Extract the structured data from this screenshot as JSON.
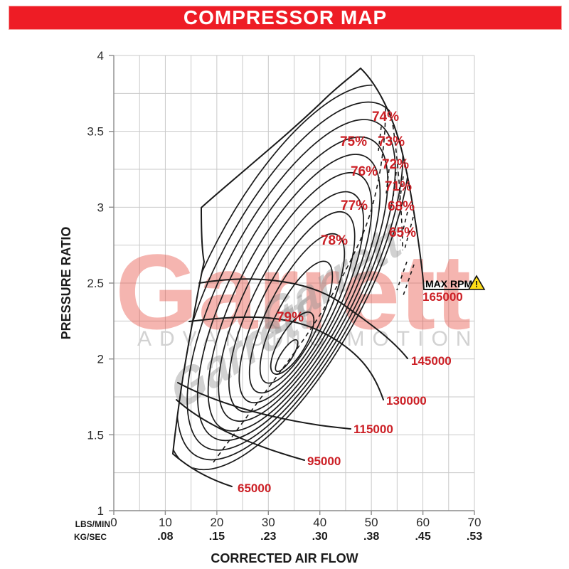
{
  "banner": {
    "title": "COMPRESSOR MAP",
    "bg_color": "#ee1c25",
    "text_color": "#ffffff"
  },
  "axes": {
    "y_title": "PRESSURE RATIO",
    "x_title": "CORRECTED AIR FLOW",
    "x_unit_row1": "LBS/MIN",
    "x_unit_row2": "KG/SEC",
    "y_ticks": [
      "4",
      "3.5",
      "3",
      "2.5",
      "2",
      "1.5",
      "1"
    ],
    "x_ticks_lbs": [
      "0",
      "10",
      "20",
      "30",
      "40",
      "50",
      "60",
      "70"
    ],
    "x_ticks_kg": [
      ".08",
      ".15",
      ".23",
      ".30",
      ".38",
      ".45",
      ".53"
    ]
  },
  "map": {
    "efficiency_labels": [
      "74%",
      "75%",
      "73%",
      "76%",
      "72%",
      "71%",
      "77%",
      "68%",
      "65%",
      "78%",
      "79%"
    ],
    "rpm_labels": [
      "165000",
      "145000",
      "130000",
      "115000",
      "95000",
      "65000"
    ],
    "max_rpm_label": "MAX RPM",
    "warning_icon_glyph": "!"
  },
  "watermark": {
    "brand": "Garrett",
    "tagline": "ADVANCING MOTION",
    "script": "Garrett"
  },
  "colors": {
    "banner_red": "#ee1c25",
    "label_red": "#cc2026",
    "curve_black": "#1a1a1a",
    "grid_gray": "#c9c9c9",
    "warning_yellow": "#ffde17",
    "watermark_pink": "#f0b0a9",
    "watermark_gray": "#d2d2d2"
  },
  "chart_data": {
    "type": "line",
    "title": "COMPRESSOR MAP",
    "xlabel": "CORRECTED AIR FLOW",
    "ylabel": "PRESSURE RATIO",
    "x_units": [
      "LBS/MIN",
      "KG/SEC"
    ],
    "xlim_lbs_min": [
      0,
      70
    ],
    "ylim_pressure_ratio": [
      1,
      4
    ],
    "x_ticks_lbs_min": [
      0,
      10,
      20,
      30,
      40,
      50,
      60,
      70
    ],
    "x_ticks_kg_sec": [
      0.08,
      0.15,
      0.23,
      0.3,
      0.38,
      0.45,
      0.53
    ],
    "grid": "on",
    "speed_lines_rpm": [
      65000,
      95000,
      115000,
      130000,
      145000,
      165000
    ],
    "max_rpm": 165000,
    "efficiency_contours_pct": [
      65,
      68,
      71,
      72,
      73,
      74,
      75,
      76,
      77,
      78,
      79
    ],
    "peak_efficiency_pct": 79,
    "surge_line_approx": [
      {
        "flow_lbs_min": 11.5,
        "pressure_ratio": 1.37
      },
      {
        "flow_lbs_min": 13.1,
        "pressure_ratio": 1.83
      },
      {
        "flow_lbs_min": 15.5,
        "pressure_ratio": 2.3
      },
      {
        "flow_lbs_min": 17.5,
        "pressure_ratio": 2.64
      },
      {
        "flow_lbs_min": 17.0,
        "pressure_ratio": 3.0
      },
      {
        "flow_lbs_min": 33.1,
        "pressure_ratio": 3.48
      },
      {
        "flow_lbs_min": 41.1,
        "pressure_ratio": 3.72
      },
      {
        "flow_lbs_min": 47.9,
        "pressure_ratio": 3.92
      }
    ],
    "speed_line_endpoints": [
      {
        "rpm": 65000,
        "flow_lbs_min": 23.2,
        "pressure_ratio": 1.16
      },
      {
        "rpm": 95000,
        "flow_lbs_min": 37.0,
        "pressure_ratio": 1.33
      },
      {
        "rpm": 115000,
        "flow_lbs_min": 46.0,
        "pressure_ratio": 1.54
      },
      {
        "rpm": 130000,
        "flow_lbs_min": 52.3,
        "pressure_ratio": 1.73
      },
      {
        "rpm": 145000,
        "flow_lbs_min": 57.0,
        "pressure_ratio": 2.0
      },
      {
        "rpm": 165000,
        "flow_lbs_min": 60.2,
        "pressure_ratio": 2.46
      }
    ]
  }
}
